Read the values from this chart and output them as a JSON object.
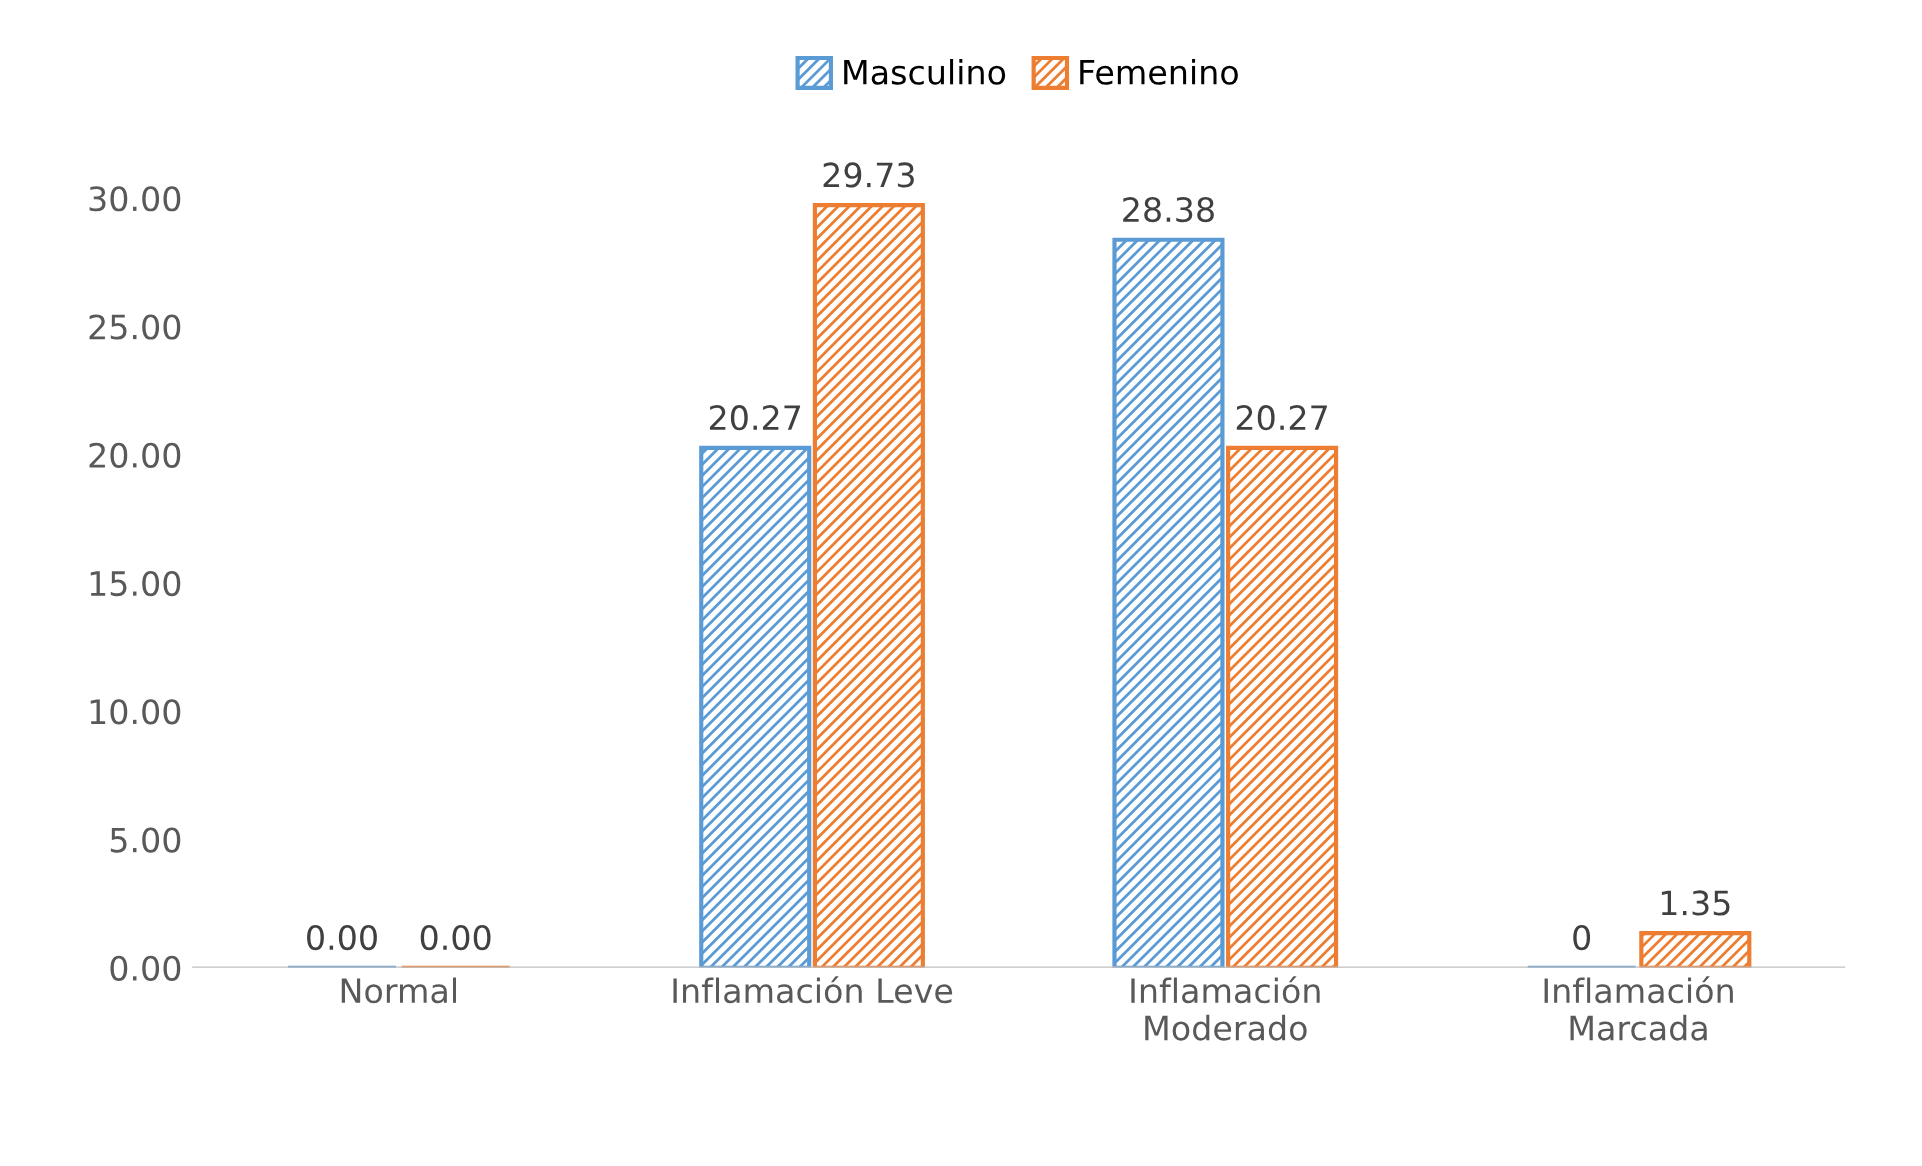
{
  "chart_data": {
    "type": "bar",
    "categories": [
      "Normal",
      "Inflamación Leve",
      "Inflamación\nModerado",
      "Inflamación\nMarcada"
    ],
    "series": [
      {
        "name": "Masculino",
        "color": "#5b9bd5",
        "values": [
          0,
          20.27,
          28.38,
          0
        ],
        "value_labels": [
          "0.00",
          "20.27",
          "28.38",
          "0"
        ]
      },
      {
        "name": "Femenino",
        "color": "#ed7d31",
        "values": [
          0,
          29.73,
          20.27,
          1.35
        ],
        "value_labels": [
          "0.00",
          "29.73",
          "20.27",
          "1.35"
        ]
      }
    ],
    "ylim": [
      0,
      30
    ],
    "yticks": [
      {
        "value": 0,
        "label": "0.00"
      },
      {
        "value": 5,
        "label": "5.00"
      },
      {
        "value": 10,
        "label": "10.00"
      },
      {
        "value": 15,
        "label": "15.00"
      },
      {
        "value": 20,
        "label": "20.00"
      },
      {
        "value": 25,
        "label": "25.00"
      },
      {
        "value": 30,
        "label": "30.00"
      }
    ],
    "grid": false,
    "legend": "top"
  }
}
